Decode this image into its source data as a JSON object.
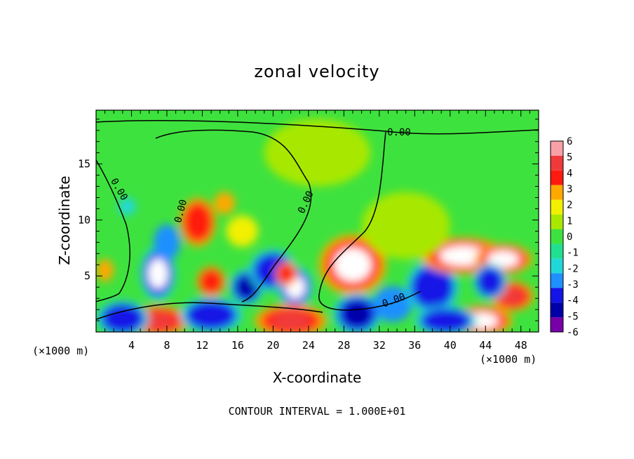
{
  "chart_data": {
    "type": "heatmap",
    "title": "zonal velocity",
    "xlabel": "X-coordinate",
    "ylabel": "Z-coordinate",
    "x_unit_note": "(×1000 m)",
    "x_unit_note_right": "(×1000 m)",
    "footer": "CONTOUR INTERVAL = 1.000E+01",
    "xlim": [
      0,
      50
    ],
    "ylim": [
      0,
      19.8
    ],
    "x_ticks": [
      "4",
      "8",
      "12",
      "16",
      "20",
      "24",
      "28",
      "32",
      "36",
      "40",
      "44",
      "48"
    ],
    "y_ticks": [
      "5",
      "10",
      "15"
    ],
    "x_tick_values": [
      4,
      8,
      12,
      16,
      20,
      24,
      28,
      32,
      36,
      40,
      44,
      48
    ],
    "y_tick_values": [
      5,
      10,
      15
    ],
    "colorbar": {
      "labels": [
        "6",
        "5",
        "4",
        "3",
        "2",
        "1",
        "0",
        "-1",
        "-2",
        "-3",
        "-4",
        "-5",
        "-6"
      ],
      "values": [
        6,
        5,
        4,
        3,
        2,
        1,
        0,
        -1,
        -2,
        -3,
        -4,
        -5,
        -6
      ],
      "colors": [
        "#f7a0a8",
        "#f03a3a",
        "#ff1a10",
        "#ffa800",
        "#f2f000",
        "#a8e800",
        "#3ee23e",
        "#20e090",
        "#20d8d8",
        "#1e90ff",
        "#1414e6",
        "#0000a8",
        "#7800a8"
      ]
    },
    "contour_labels": [
      "0.00",
      "0.00",
      "0.00",
      "0.00",
      "0.00"
    ],
    "features": [
      {
        "x": 7.0,
        "z": 5.2,
        "value": -6,
        "sx": 1.5,
        "sz": 1.8
      },
      {
        "x": 7.0,
        "z": 1.0,
        "value": 5,
        "sx": 2.6,
        "sz": 1.0
      },
      {
        "x": 3.0,
        "z": 1.2,
        "value": -4,
        "sx": 2.2,
        "sz": 1.2
      },
      {
        "x": 13.0,
        "z": 1.5,
        "value": -4,
        "sx": 2.6,
        "sz": 1.2
      },
      {
        "x": 11.5,
        "z": 9.8,
        "value": 4,
        "sx": 1.5,
        "sz": 1.6
      },
      {
        "x": 14.5,
        "z": 11.5,
        "value": 3,
        "sx": 1.2,
        "sz": 1.0
      },
      {
        "x": 13.0,
        "z": 4.5,
        "value": 4,
        "sx": 1.2,
        "sz": 1.0
      },
      {
        "x": 17.0,
        "z": 4.0,
        "value": -5,
        "sx": 1.4,
        "sz": 1.2
      },
      {
        "x": 20.0,
        "z": 5.5,
        "value": -4,
        "sx": 2.0,
        "sz": 1.4
      },
      {
        "x": 22.5,
        "z": 4.0,
        "value": -6,
        "sx": 1.5,
        "sz": 1.4
      },
      {
        "x": 21.5,
        "z": 5.2,
        "value": 4,
        "sx": 0.9,
        "sz": 0.8
      },
      {
        "x": 22.0,
        "z": 1.0,
        "value": 5,
        "sx": 3.0,
        "sz": 1.1
      },
      {
        "x": 29.0,
        "z": 6.0,
        "value": 6,
        "sx": 2.8,
        "sz": 2.0
      },
      {
        "x": 29.5,
        "z": 1.6,
        "value": -5,
        "sx": 2.0,
        "sz": 1.4
      },
      {
        "x": 33.5,
        "z": 2.5,
        "value": -3,
        "sx": 2.2,
        "sz": 1.6
      },
      {
        "x": 38.0,
        "z": 4.0,
        "value": -4,
        "sx": 2.2,
        "sz": 1.8
      },
      {
        "x": 41.5,
        "z": 6.8,
        "value": 6,
        "sx": 3.6,
        "sz": 1.2
      },
      {
        "x": 46.0,
        "z": 6.5,
        "value": 6,
        "sx": 2.4,
        "sz": 1.0
      },
      {
        "x": 47.0,
        "z": 3.2,
        "value": 5,
        "sx": 1.8,
        "sz": 1.0
      },
      {
        "x": 44.5,
        "z": 4.5,
        "value": -4,
        "sx": 1.4,
        "sz": 1.2
      },
      {
        "x": 43.5,
        "z": 1.0,
        "value": 6,
        "sx": 2.6,
        "sz": 1.0
      },
      {
        "x": 39.5,
        "z": 1.0,
        "value": -4,
        "sx": 2.6,
        "sz": 1.0
      },
      {
        "x": 8.0,
        "z": 8.0,
        "value": -3,
        "sx": 1.5,
        "sz": 1.6
      },
      {
        "x": 1.0,
        "z": 5.5,
        "value": 3,
        "sx": 1.0,
        "sz": 1.0
      },
      {
        "x": 16.5,
        "z": 9.0,
        "value": 2,
        "sx": 1.8,
        "sz": 1.4
      },
      {
        "x": 3.5,
        "z": 11.2,
        "value": -2,
        "sx": 1.0,
        "sz": 0.8
      },
      {
        "x": 25.0,
        "z": 16.0,
        "value": 0.8,
        "sx": 6.0,
        "sz": 3.0
      },
      {
        "x": 35.0,
        "z": 9.5,
        "value": 0.7,
        "sx": 5.0,
        "sz": 3.0
      }
    ]
  }
}
